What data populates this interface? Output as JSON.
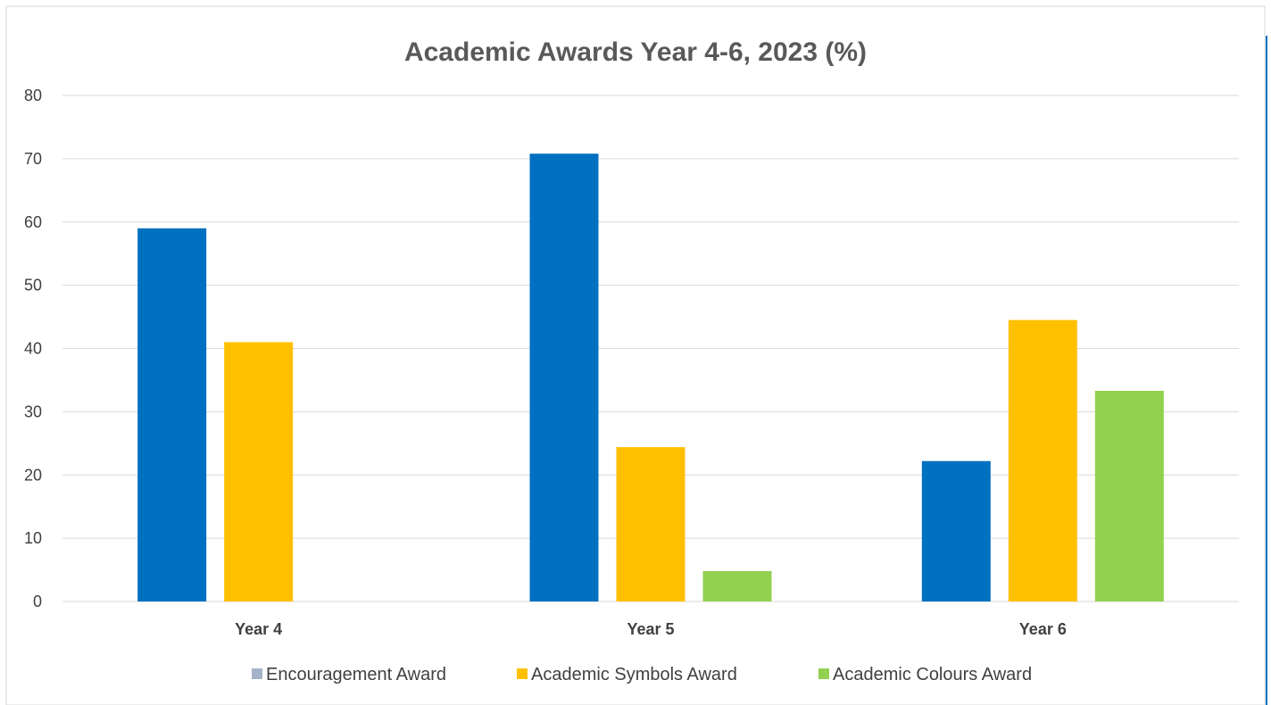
{
  "chart_data": {
    "type": "bar",
    "title": "Academic Awards Year 4-6, 2023 (%)",
    "xlabel": "",
    "ylabel": "",
    "categories": [
      "Year 4",
      "Year 5",
      "Year 6"
    ],
    "ylim": [
      0,
      80
    ],
    "yticks": [
      0,
      10,
      20,
      30,
      40,
      50,
      60,
      70,
      80
    ],
    "grid": true,
    "legend_position": "bottom",
    "series": [
      {
        "name": "Encouragement Award",
        "values": [
          59,
          70.8,
          22.2
        ],
        "color": "#0070c0",
        "legend_color": "#a5b3c8"
      },
      {
        "name": "Academic Symbols Award",
        "values": [
          41,
          24.4,
          44.5
        ],
        "color": "#ffc000",
        "legend_color": "#ffc000"
      },
      {
        "name": "Academic Colours Award",
        "values": [
          0,
          4.8,
          33.3
        ],
        "color": "#92d050",
        "legend_color": "#92d050"
      }
    ]
  }
}
